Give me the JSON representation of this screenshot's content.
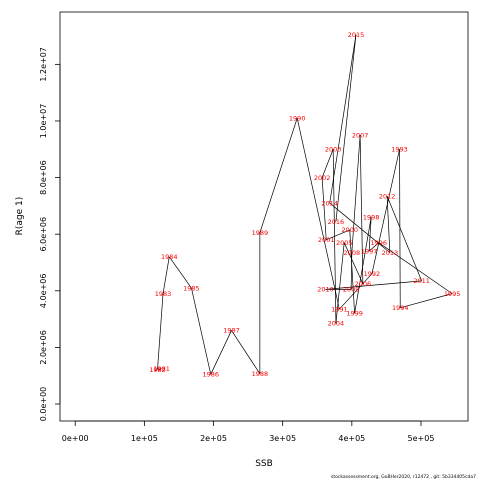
{
  "chart_data": {
    "type": "line",
    "xlabel": "SSB",
    "ylabel": "R(age 1)",
    "xlim": [
      -22000,
      568000
    ],
    "ylim": [
      -600000,
      13850000
    ],
    "x_ticks": [
      0,
      100000,
      200000,
      300000,
      400000,
      500000
    ],
    "x_tick_labels": [
      "0e+00",
      "1e+05",
      "2e+05",
      "3e+05",
      "4e+05",
      "5e+05"
    ],
    "y_ticks": [
      0,
      2000000,
      4000000,
      6000000,
      8000000,
      10000000,
      12000000
    ],
    "y_tick_labels": [
      "0.0e+00",
      "2.0e+06",
      "4.0e+06",
      "6.0e+06",
      "8.0e+06",
      "1.0e+07",
      "1.2e+07"
    ],
    "grid": false,
    "line_color": "#000000",
    "label_color": "#ff0000",
    "points": [
      {
        "year": "1981",
        "ssb": 125000,
        "rec": 1250000
      },
      {
        "year": "1982",
        "ssb": 119000,
        "rec": 1220000
      },
      {
        "year": "1983",
        "ssb": 127000,
        "rec": 3900000
      },
      {
        "year": "1984",
        "ssb": 136000,
        "rec": 5200000
      },
      {
        "year": "1985",
        "ssb": 168000,
        "rec": 4100000
      },
      {
        "year": "1986",
        "ssb": 196000,
        "rec": 1050000
      },
      {
        "year": "1987",
        "ssb": 226000,
        "rec": 2600000
      },
      {
        "year": "1988",
        "ssb": 267000,
        "rec": 1070000
      },
      {
        "year": "1989",
        "ssb": 267000,
        "rec": 6050000
      },
      {
        "year": "1990",
        "ssb": 321000,
        "rec": 10100000
      },
      {
        "year": "1991",
        "ssb": 382000,
        "rec": 3350000
      },
      {
        "year": "1992",
        "ssb": 429000,
        "rec": 4600000
      },
      {
        "year": "1993",
        "ssb": 469000,
        "rec": 9000000
      },
      {
        "year": "1994",
        "ssb": 470000,
        "rec": 3400000
      },
      {
        "year": "1995",
        "ssb": 545000,
        "rec": 3900000
      },
      {
        "year": "1996",
        "ssb": 439000,
        "rec": 5700000
      },
      {
        "year": "1997",
        "ssb": 425000,
        "rec": 5400000
      },
      {
        "year": "1998",
        "ssb": 428000,
        "rec": 6600000
      },
      {
        "year": "1999",
        "ssb": 404000,
        "rec": 3200000
      },
      {
        "year": "2000",
        "ssb": 397000,
        "rec": 6150000
      },
      {
        "year": "2001",
        "ssb": 363000,
        "rec": 5800000
      },
      {
        "year": "2002",
        "ssb": 357000,
        "rec": 8000000
      },
      {
        "year": "2003",
        "ssb": 373000,
        "rec": 9000000
      },
      {
        "year": "2004",
        "ssb": 377000,
        "rec": 2850000
      },
      {
        "year": "2005",
        "ssb": 389000,
        "rec": 5700000
      },
      {
        "year": "2006",
        "ssb": 416000,
        "rec": 4250000
      },
      {
        "year": "2007",
        "ssb": 412000,
        "rec": 9500000
      },
      {
        "year": "2008",
        "ssb": 400000,
        "rec": 5350000
      },
      {
        "year": "2009",
        "ssb": 399000,
        "rec": 4050000
      },
      {
        "year": "2010",
        "ssb": 362000,
        "rec": 4050000
      },
      {
        "year": "2011",
        "ssb": 501000,
        "rec": 4350000
      },
      {
        "year": "2012",
        "ssb": 451000,
        "rec": 7350000
      },
      {
        "year": "2013",
        "ssb": 455000,
        "rec": 5350000
      },
      {
        "year": "2014",
        "ssb": 368000,
        "rec": 7100000
      },
      {
        "year": "2015",
        "ssb": 406000,
        "rec": 13050000
      },
      {
        "year": "2016",
        "ssb": 377000,
        "rec": 6450000
      }
    ]
  },
  "footer": "stockassessment.org, GoBHer2020, r12472 , git: 5b334405cda7"
}
